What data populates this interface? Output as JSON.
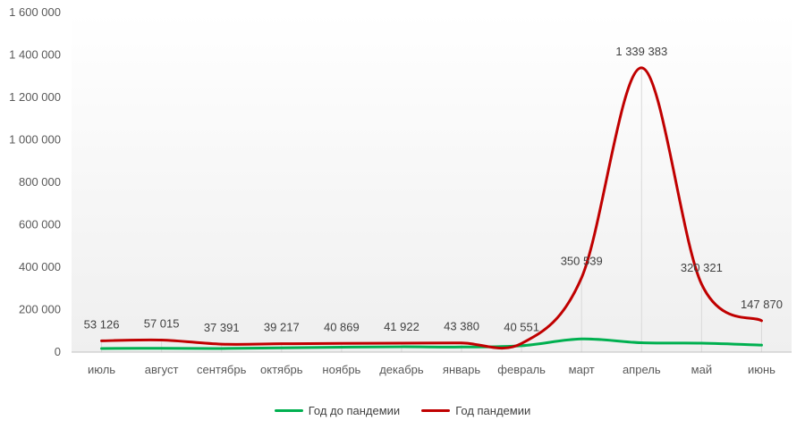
{
  "chart_data": {
    "type": "line",
    "categories": [
      "июль",
      "август",
      "сентябрь",
      "октябрь",
      "ноябрь",
      "декабрь",
      "январь",
      "февраль",
      "март",
      "апрель",
      "май",
      "июнь"
    ],
    "series": [
      {
        "name": "Год до пандемии",
        "color": "#00b050",
        "values": [
          17000,
          18000,
          17000,
          20000,
          23000,
          25000,
          24000,
          30000,
          62000,
          44000,
          42000,
          33000
        ]
      },
      {
        "name": "Год пандемии",
        "color": "#c00000",
        "values": [
          53126,
          57015,
          37391,
          39217,
          40869,
          41922,
          43380,
          40551,
          350539,
          1339383,
          320321,
          147870
        ],
        "data_labels": [
          "53 126",
          "57 015",
          "37 391",
          "39 217",
          "40 869",
          "41 922",
          "43 380",
          "40 551",
          "350 539",
          "1 339 383",
          "320 321",
          "147 870"
        ]
      }
    ],
    "ylim": [
      0,
      1600000
    ],
    "yticks": [
      0,
      200000,
      400000,
      600000,
      800000,
      1000000,
      1200000,
      1400000,
      1600000
    ],
    "ytick_labels": [
      "0",
      "200 000",
      "400 000",
      "600 000",
      "800 000",
      "1 000 000",
      "1 200 000",
      "1 400 000",
      "1 600 000"
    ],
    "grid": false,
    "legend_position": "bottom"
  }
}
